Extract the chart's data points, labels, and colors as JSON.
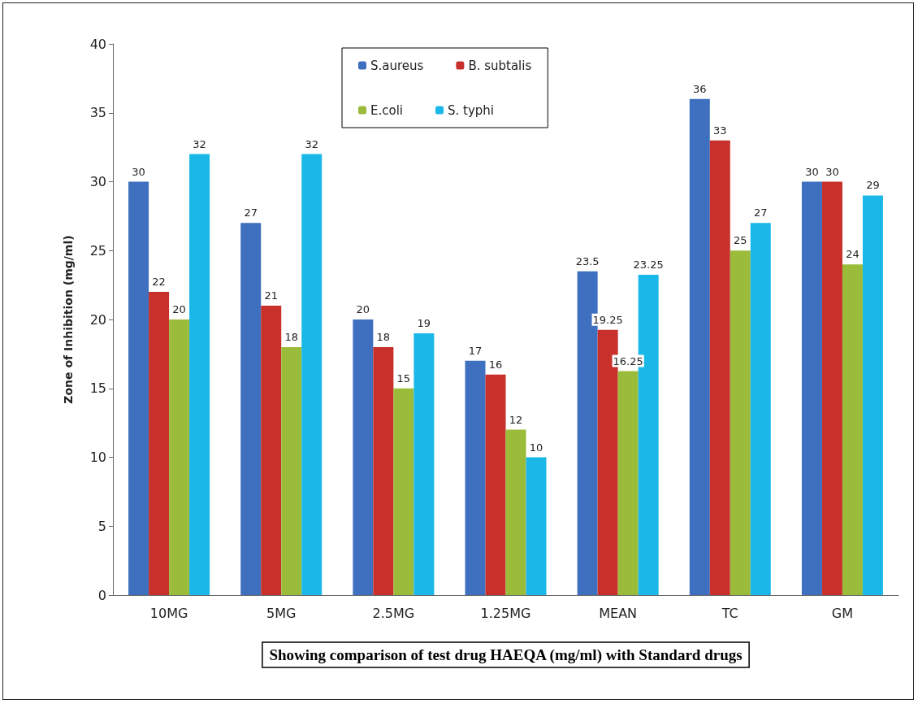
{
  "chart_data": {
    "type": "bar",
    "xlabel": "Showing comparison of test drug HAEQA (mg/ml) with Standard drugs",
    "ylabel": "Zone of Inhibition (mg/ml)",
    "categories": [
      "10MG",
      "5MG",
      "2.5MG",
      "1.25MG",
      "MEAN",
      "TC",
      "GM"
    ],
    "series": [
      {
        "name": "S.aureus",
        "color": "#3f6fbf",
        "values": [
          30,
          27,
          20,
          17,
          23.5,
          36,
          30
        ]
      },
      {
        "name": "B. subtalis",
        "color": "#c8302c",
        "values": [
          22,
          21,
          18,
          16,
          19.25,
          33,
          30
        ]
      },
      {
        "name": "E.coli",
        "color": "#9bbb3b",
        "values": [
          20,
          18,
          15,
          12,
          16.25,
          25,
          24
        ]
      },
      {
        "name": "S. typhi",
        "color": "#1ab8e8",
        "values": [
          32,
          32,
          19,
          10,
          23.25,
          27,
          29
        ]
      }
    ],
    "ylim": [
      0,
      40
    ],
    "yticks": [
      0,
      5,
      10,
      15,
      20,
      25,
      30,
      35,
      40
    ],
    "grid": false,
    "legend": "top",
    "data_labels": true
  }
}
